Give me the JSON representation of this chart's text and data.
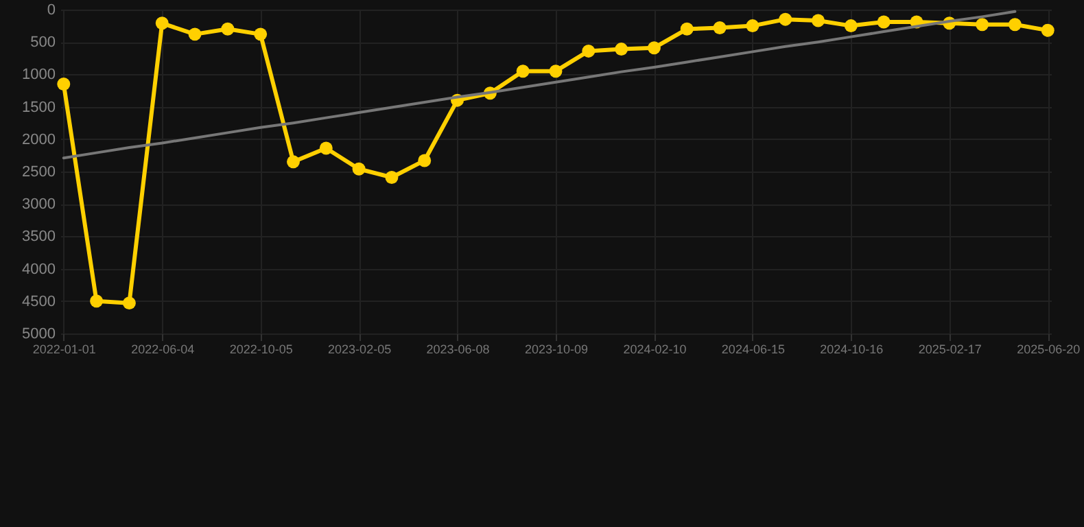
{
  "chart_data": {
    "type": "line",
    "categories": [
      "2022-01-01",
      null,
      null,
      "2022-06-04",
      null,
      null,
      "2022-10-05",
      null,
      null,
      "2023-02-05",
      null,
      null,
      "2023-06-08",
      null,
      null,
      "2023-10-09",
      null,
      null,
      "2024-02-10",
      null,
      null,
      "2024-06-15",
      null,
      null,
      "2024-10-16",
      null,
      null,
      "2025-02-17",
      null,
      null,
      "2025-06-20"
    ],
    "series": [
      {
        "color": "#ffd000",
        "marker": "circle",
        "values": [
          1150,
          4500,
          4530,
          210,
          380,
          300,
          380,
          2350,
          2140,
          2460,
          2590,
          2330,
          1400,
          1290,
          950,
          950,
          640,
          610,
          590,
          300,
          280,
          250,
          150,
          170,
          250,
          190,
          190,
          210,
          230,
          230,
          320
        ]
      },
      {
        "color": "#777777",
        "marker": "none",
        "values": [
          2290,
          2210,
          2130,
          2060,
          1980,
          1900,
          1820,
          1750,
          1670,
          1590,
          1510,
          1430,
          1350,
          1280,
          1200,
          1120,
          1040,
          960,
          890,
          810,
          730,
          650,
          570,
          500,
          420,
          340,
          260,
          180,
          110,
          30,
          null
        ]
      }
    ],
    "ylim": [
      5000,
      0
    ],
    "yticks": [
      0,
      500,
      1000,
      1500,
      2000,
      2500,
      3000,
      3500,
      4000,
      4500,
      5000
    ],
    "grid": true
  }
}
